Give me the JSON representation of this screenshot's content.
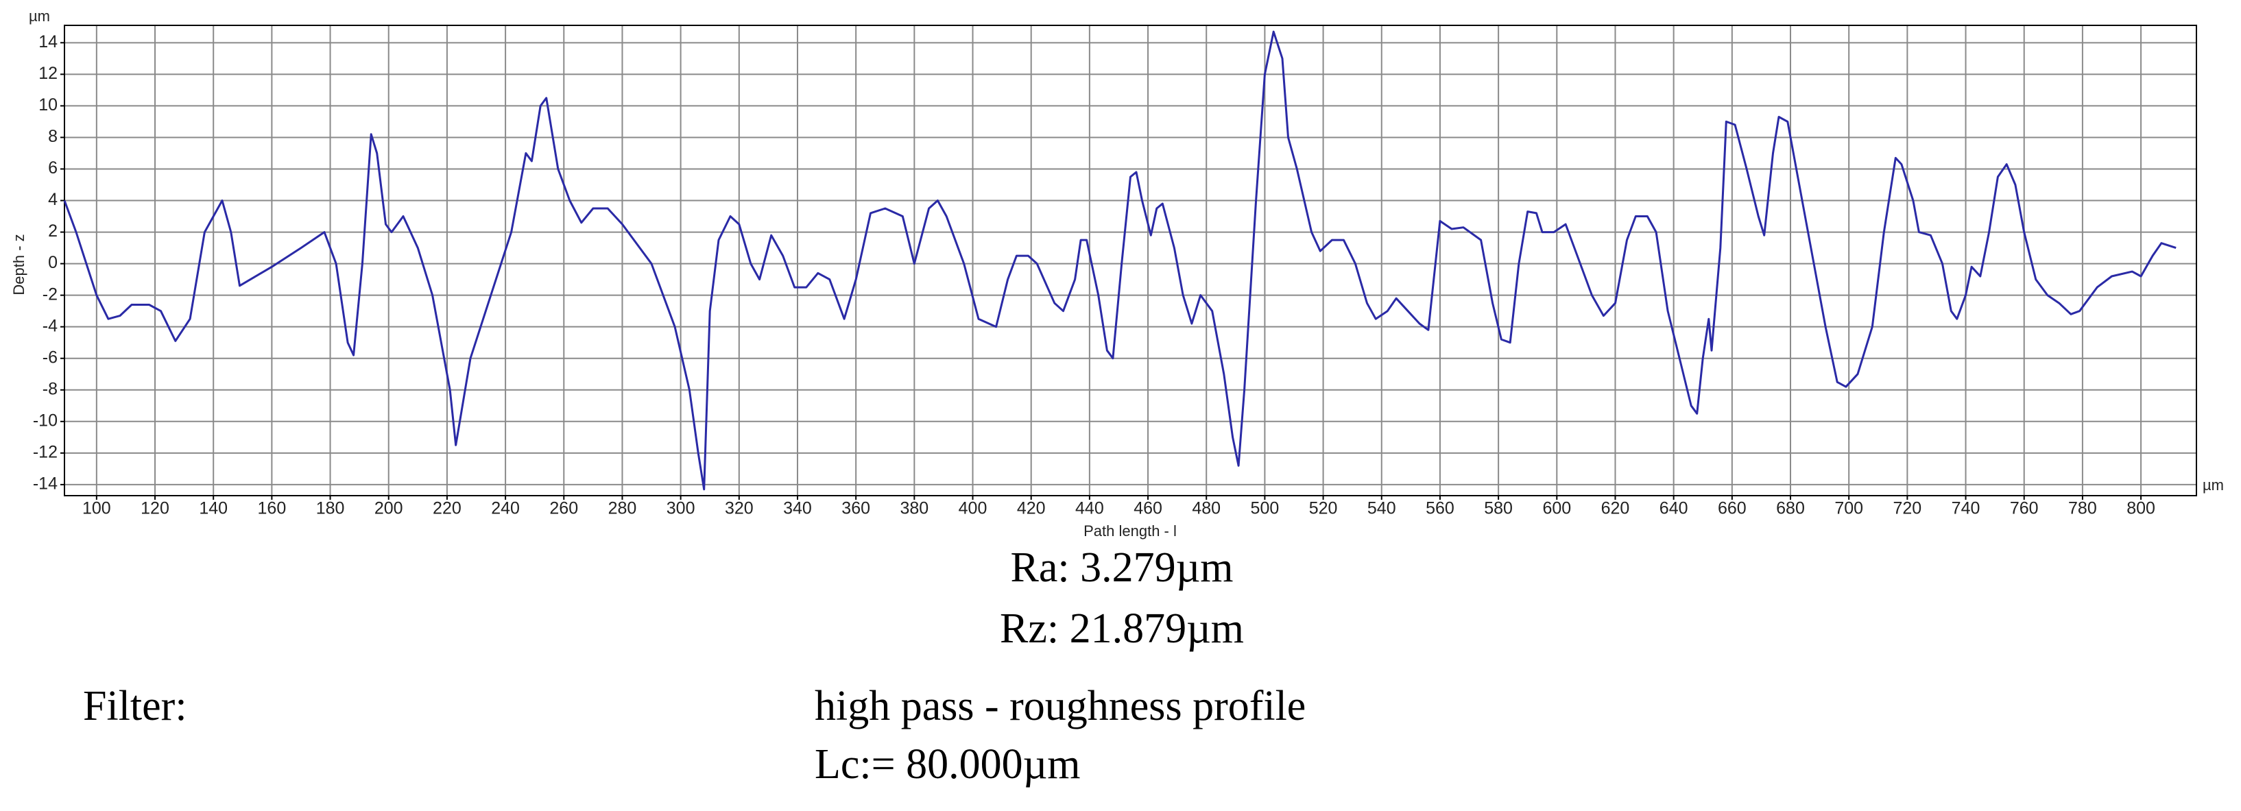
{
  "chart_data": {
    "type": "line",
    "ylabel": "Depth - z",
    "xlabel": "Path length - l",
    "y_unit": "µm",
    "x_unit": "µm",
    "color": "#2a2aa6",
    "grid": true,
    "xlim": [
      89,
      819
    ],
    "ylim": [
      -14.7,
      15.1
    ],
    "xticks": [
      100,
      120,
      140,
      160,
      180,
      200,
      220,
      240,
      260,
      280,
      300,
      320,
      340,
      360,
      380,
      400,
      420,
      440,
      460,
      480,
      500,
      520,
      540,
      560,
      580,
      600,
      620,
      640,
      660,
      680,
      700,
      720,
      740,
      760,
      780,
      800
    ],
    "yticks": [
      -14,
      -12,
      -10,
      -8,
      -6,
      -4,
      -2,
      0,
      2,
      4,
      6,
      8,
      10,
      12,
      14
    ],
    "x": [
      89,
      93,
      100,
      104,
      108,
      112,
      118,
      122,
      127,
      132,
      137,
      143,
      146,
      149,
      160,
      170,
      178,
      182,
      186,
      188,
      191,
      194,
      196,
      199,
      201,
      205,
      210,
      215,
      221,
      223,
      228,
      235,
      242,
      247,
      249,
      252,
      254,
      258,
      262,
      266,
      270,
      275,
      280,
      290,
      298,
      303,
      306,
      308,
      310,
      313,
      317,
      320,
      324,
      327,
      331,
      335,
      339,
      343,
      347,
      351,
      356,
      360,
      365,
      370,
      376,
      380,
      385,
      388,
      391,
      397,
      402,
      408,
      412,
      415,
      419,
      422,
      428,
      431,
      435,
      437,
      439,
      443,
      446,
      448,
      451,
      454,
      456,
      458,
      461,
      463,
      465,
      469,
      472,
      475,
      478,
      482,
      486,
      489,
      491,
      493,
      497,
      500,
      503,
      506,
      508,
      511,
      516,
      519,
      523,
      527,
      531,
      535,
      538,
      542,
      545,
      549,
      553,
      556,
      560,
      564,
      568,
      574,
      578,
      581,
      584,
      587,
      590,
      593,
      595,
      599,
      603,
      606,
      612,
      616,
      620,
      624,
      627,
      631,
      634,
      638,
      642,
      646,
      648,
      650,
      652,
      653,
      656,
      658,
      661,
      665,
      669,
      671,
      674,
      676,
      679,
      683,
      688,
      692,
      696,
      699,
      703,
      708,
      712,
      716,
      718,
      722,
      724,
      728,
      732,
      735,
      737,
      740,
      742,
      745,
      748,
      751,
      754,
      757,
      760,
      764,
      768,
      772,
      776,
      779,
      785,
      790,
      797,
      800,
      804,
      807,
      812
    ],
    "values": [
      4,
      2,
      -2,
      -3.5,
      -3.3,
      -2.6,
      -2.6,
      -3,
      -4.9,
      -3.5,
      2,
      4,
      2,
      -1.4,
      -0.2,
      1,
      2,
      0,
      -5,
      -5.8,
      0,
      8.2,
      7,
      2.5,
      2,
      3,
      1,
      -2,
      -8,
      -11.5,
      -6,
      -2,
      2,
      7,
      6.5,
      10,
      10.5,
      6,
      4,
      2.6,
      3.5,
      3.5,
      2.5,
      0,
      -4,
      -8,
      -12,
      -14.3,
      -3,
      1.5,
      3,
      2.5,
      0,
      -1,
      1.8,
      0.5,
      -1.5,
      -1.5,
      -0.6,
      -1,
      -3.5,
      -1,
      3.2,
      3.5,
      3,
      0,
      3.5,
      4,
      3,
      0,
      -3.5,
      -4,
      -1,
      0.5,
      0.5,
      0,
      -2.5,
      -3,
      -1,
      1.5,
      1.5,
      -2,
      -5.5,
      -6,
      0,
      5.5,
      5.8,
      4,
      1.8,
      3.5,
      3.8,
      1,
      -2,
      -3.8,
      -2,
      -3,
      -7,
      -11,
      -12.8,
      -8,
      4,
      12,
      14.7,
      13,
      8,
      6,
      2,
      0.8,
      1.5,
      1.5,
      0,
      -2.5,
      -3.5,
      -3,
      -2.2,
      -3,
      -3.8,
      -4.2,
      2.7,
      2.2,
      2.3,
      1.5,
      -2.5,
      -4.8,
      -5,
      0,
      3.3,
      3.2,
      2,
      2,
      2.5,
      1,
      -2,
      -3.3,
      -2.5,
      1.5,
      3,
      3,
      2,
      -3,
      -6,
      -9,
      -9.5,
      -6,
      -3.5,
      -5.5,
      1,
      9,
      8.8,
      6,
      3,
      1.8,
      7,
      9.3,
      9,
      5,
      0,
      -4,
      -7.5,
      -7.8,
      -7,
      -4,
      2,
      6.7,
      6.3,
      4,
      2,
      1.8,
      0,
      -3,
      -3.5,
      -2,
      -0.2,
      -0.8,
      2,
      5.5,
      6.3,
      5,
      2,
      -1,
      -2,
      -2.5,
      -3.2,
      -3,
      -1.5,
      -0.8,
      -0.5,
      -0.8,
      0.5,
      1.3,
      1.0
    ]
  },
  "results": {
    "ra": "Ra: 3.279µm",
    "rz": "Rz: 21.879µm",
    "filter_label": "Filter:",
    "filter_value": "high pass - roughness profile",
    "lc": "Lc:= 80.000µm"
  }
}
